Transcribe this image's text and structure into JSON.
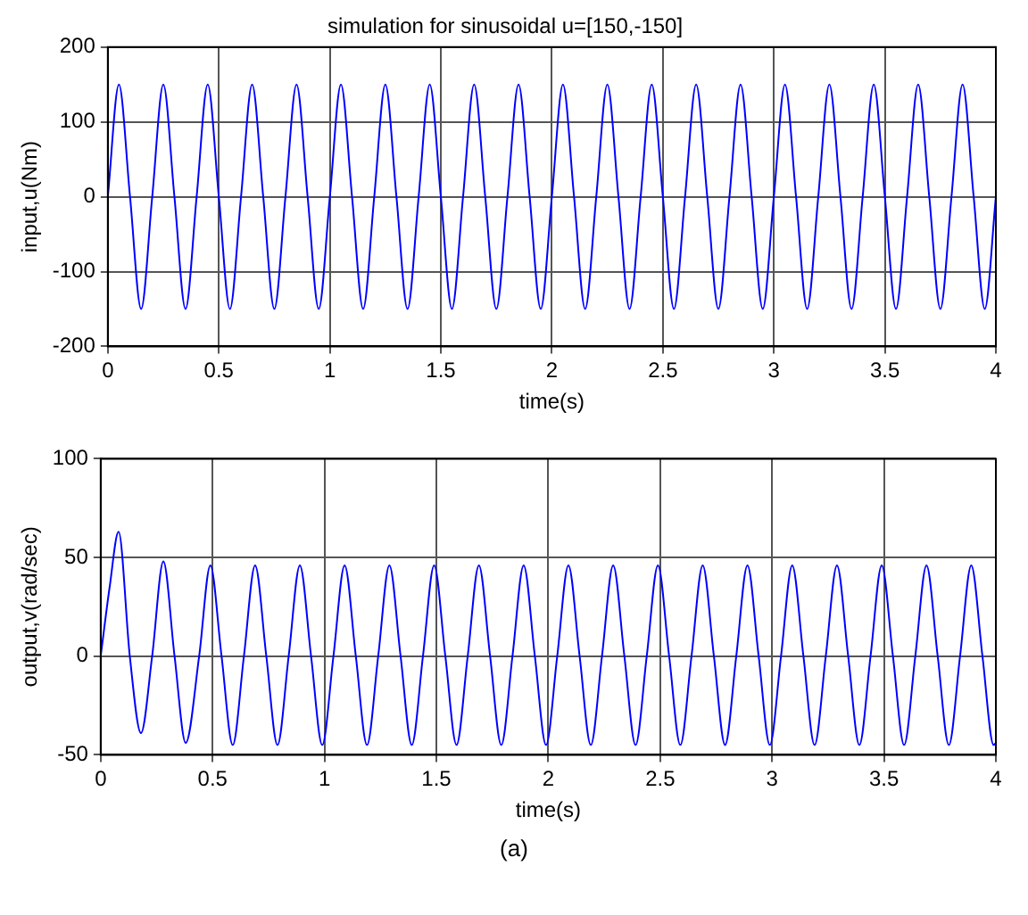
{
  "chart_data": [
    {
      "type": "line",
      "title": "simulation for sinusoidal u=[150,-150]",
      "xlabel": "time(s)",
      "ylabel": "input,u(Nm)",
      "xlim": [
        0,
        4
      ],
      "xticks": [
        0,
        0.5,
        1,
        1.5,
        2,
        2.5,
        3,
        3.5,
        4
      ],
      "ylim": [
        -200,
        200
      ],
      "yticks": [
        -200,
        -100,
        0,
        100,
        200
      ],
      "grid": true,
      "series": [
        {
          "color": "#0000ff",
          "x": [
            0,
            0.05,
            0.1,
            0.15,
            0.2,
            0.25,
            0.3,
            0.35,
            0.4,
            0.45,
            0.5,
            0.55,
            0.6,
            0.65,
            0.7,
            0.75,
            0.8,
            0.85,
            0.9,
            0.95,
            1,
            1.05,
            1.1,
            1.15,
            1.2,
            1.25,
            1.3,
            1.35,
            1.4,
            1.45,
            1.5,
            1.55,
            1.6,
            1.65,
            1.7,
            1.75,
            1.8,
            1.85,
            1.9,
            1.95,
            2,
            2.05,
            2.1,
            2.15,
            2.2,
            2.25,
            2.3,
            2.35,
            2.4,
            2.45,
            2.5,
            2.55,
            2.6,
            2.65,
            2.7,
            2.75,
            2.8,
            2.85,
            2.9,
            2.95,
            3,
            3.05,
            3.1,
            3.15,
            3.2,
            3.25,
            3.3,
            3.35,
            3.4,
            3.45,
            3.5,
            3.55,
            3.6,
            3.65,
            3.7,
            3.75,
            3.8,
            3.85,
            3.9,
            3.95,
            4
          ],
          "values": [
            0,
            150,
            0,
            -150,
            0,
            150,
            0,
            -150,
            0,
            150,
            0,
            -150,
            0,
            150,
            0,
            -150,
            0,
            150,
            0,
            -150,
            0,
            150,
            0,
            -150,
            0,
            150,
            0,
            -150,
            0,
            150,
            0,
            -150,
            0,
            150,
            0,
            -150,
            0,
            150,
            0,
            -150,
            0,
            150,
            0,
            -150,
            0,
            150,
            0,
            -150,
            0,
            150,
            0,
            -150,
            0,
            150,
            0,
            -150,
            0,
            150,
            0,
            -150,
            0,
            150,
            0,
            -150,
            0,
            150,
            0,
            -150,
            0,
            150,
            0,
            -150,
            0,
            150,
            0,
            -150,
            0,
            150,
            0,
            -150,
            0
          ]
        }
      ]
    },
    {
      "type": "line",
      "xlabel": "time(s)",
      "ylabel": "output,v(rad/sec)",
      "xlim": [
        0,
        4
      ],
      "xticks": [
        0,
        0.5,
        1,
        1.5,
        2,
        2.5,
        3,
        3.5,
        4
      ],
      "ylim": [
        -50,
        100
      ],
      "yticks": [
        -50,
        0,
        50,
        100
      ],
      "grid": true,
      "annotations": [
        "(a)"
      ],
      "series": [
        {
          "color": "#0000ff",
          "x": [
            0,
            0.04,
            0.08,
            0.13,
            0.18,
            0.23,
            0.28,
            0.33,
            0.38,
            0.44,
            0.49,
            0.54,
            0.59,
            0.64,
            0.69,
            0.74,
            0.79,
            0.84,
            0.89,
            0.94,
            0.99,
            1.04,
            1.09,
            1.14,
            1.19,
            1.24,
            1.29,
            1.34,
            1.39,
            1.44,
            1.49,
            1.54,
            1.59,
            1.64,
            1.69,
            1.74,
            1.79,
            1.84,
            1.89,
            1.94,
            1.99,
            2.04,
            2.09,
            2.14,
            2.19,
            2.24,
            2.29,
            2.34,
            2.39,
            2.44,
            2.49,
            2.54,
            2.59,
            2.64,
            2.69,
            2.74,
            2.79,
            2.84,
            2.89,
            2.94,
            2.99,
            3.04,
            3.09,
            3.14,
            3.19,
            3.24,
            3.29,
            3.34,
            3.39,
            3.44,
            3.49,
            3.54,
            3.59,
            3.64,
            3.69,
            3.74,
            3.79,
            3.84,
            3.89,
            3.94,
            3.99,
            4
          ],
          "values": [
            0,
            35,
            63,
            0,
            -39,
            0,
            48,
            0,
            -44,
            0,
            46,
            0,
            -45,
            0,
            46,
            0,
            -45,
            0,
            46,
            0,
            -45,
            0,
            46,
            0,
            -45,
            0,
            46,
            0,
            -45,
            0,
            46,
            0,
            -45,
            0,
            46,
            0,
            -45,
            0,
            46,
            0,
            -45,
            0,
            46,
            0,
            -45,
            0,
            46,
            0,
            -45,
            0,
            46,
            0,
            -45,
            0,
            46,
            0,
            -45,
            0,
            46,
            0,
            -45,
            0,
            46,
            0,
            -45,
            0,
            46,
            0,
            -45,
            0,
            46,
            0,
            -45,
            0,
            46,
            0,
            -45,
            0,
            46,
            0,
            -45,
            -44
          ]
        }
      ]
    }
  ]
}
